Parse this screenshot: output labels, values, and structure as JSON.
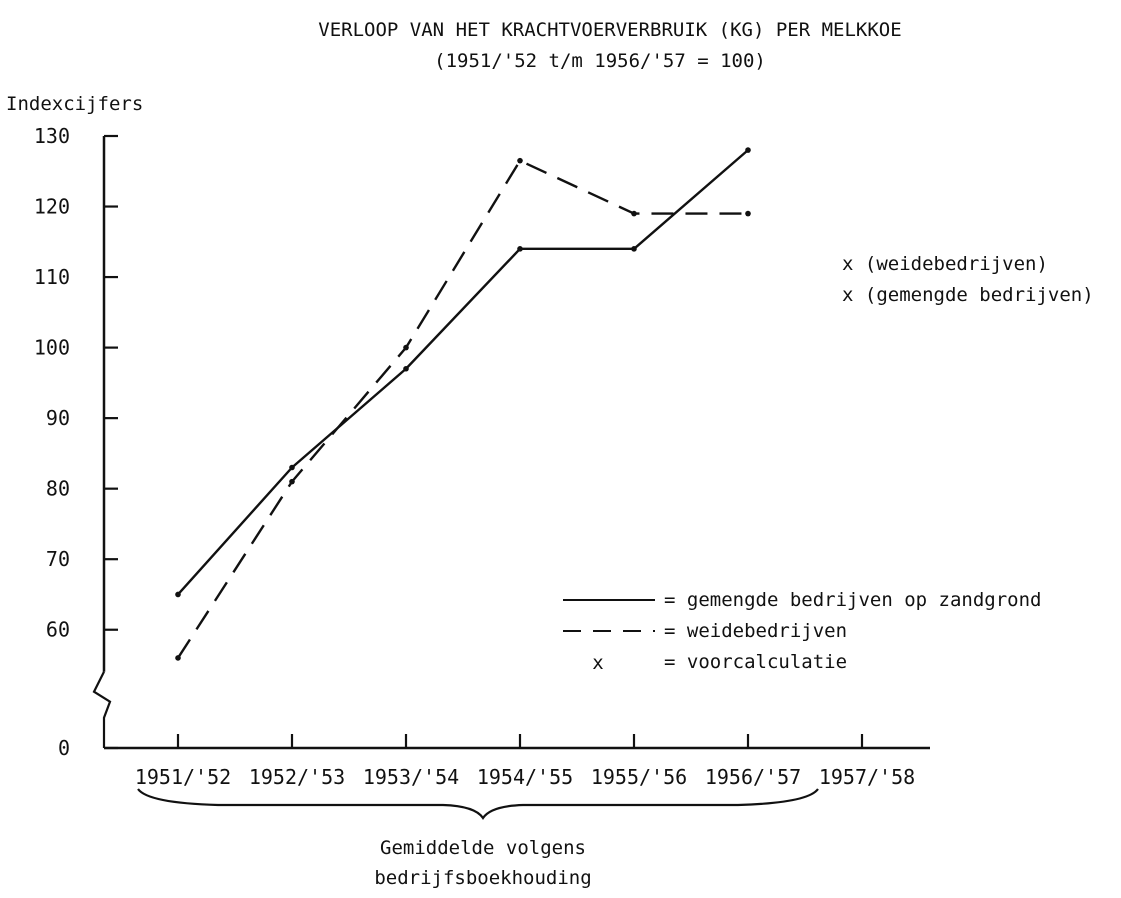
{
  "chart_data": {
    "type": "line",
    "title": "VERLOOP VAN HET KRACHTVOERVERBRUIK (KG) PER MELKKOE",
    "subtitle": "(1951/'52 t/m 1956/'57 = 100)",
    "ylabel": "Indexcijfers",
    "xlabel": "",
    "categories": [
      "1951/'52",
      "1952/'53",
      "1953/'54",
      "1954/'55",
      "1955/'56",
      "1956/'57",
      "1957/'58"
    ],
    "y_ticks": [
      {
        "label": "130",
        "value": 130
      },
      {
        "label": "120",
        "value": 120
      },
      {
        "label": "110",
        "value": 110
      },
      {
        "label": "100",
        "value": 100
      },
      {
        "label": "90",
        "value": 90
      },
      {
        "label": "80",
        "value": 80
      },
      {
        "label": "70",
        "value": 70
      },
      {
        "label": "60",
        "value": 60
      },
      {
        "label": "0",
        "value": 0
      }
    ],
    "ylim": [
      55,
      130
    ],
    "axis_break": true,
    "grid": false,
    "legend_position": "center-right",
    "series": [
      {
        "key": "gemengd",
        "style": "solid",
        "values": [
          65,
          83,
          97,
          114,
          114,
          128,
          null
        ]
      },
      {
        "key": "weide",
        "style": "dashed",
        "values": [
          56,
          81,
          100,
          126.5,
          119,
          119,
          null
        ]
      }
    ],
    "legend": [
      {
        "style": "solid",
        "symbol": "",
        "label": "= gemengde bedrijven op zandgrond"
      },
      {
        "style": "dashed",
        "symbol": "",
        "label": "= weidebedrijven"
      },
      {
        "style": "none",
        "symbol": "x",
        "label": "= voorcalculatie"
      }
    ],
    "annotations": [
      {
        "text": "x (weidebedrijven)"
      },
      {
        "text": "x (gemengde bedrijven)"
      }
    ],
    "brace": {
      "from_category": 0,
      "to_category": 5,
      "label_lines": [
        "Gemiddelde volgens",
        "bedrijfsboekhouding"
      ]
    }
  }
}
